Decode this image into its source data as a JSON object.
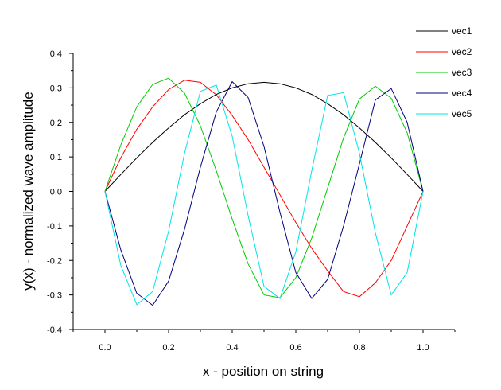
{
  "chart_data": {
    "type": "line",
    "title": "",
    "xlabel": "x - position on string",
    "ylabel": "y(x) - normalized wave amplitude",
    "xlim": [
      -0.1,
      1.1
    ],
    "ylim": [
      -0.4,
      0.4
    ],
    "x_ticks": [
      0.0,
      0.2,
      0.4,
      0.6,
      0.8,
      1.0
    ],
    "x_tick_labels": [
      "0.0",
      "0.2",
      "0.4",
      "0.6",
      "0.8",
      "1.0"
    ],
    "y_ticks": [
      -0.4,
      -0.3,
      -0.2,
      -0.1,
      0.0,
      0.1,
      0.2,
      0.3,
      0.4
    ],
    "y_tick_labels": [
      "-0.4",
      "-0.3",
      "-0.2",
      "-0.1",
      "0.0",
      "0.1",
      "0.2",
      "0.3",
      "0.4"
    ],
    "grid": false,
    "legend_position": "top-right",
    "series": [
      {
        "name": "vec1",
        "color": "#000000",
        "x": [
          0.0,
          0.05,
          0.1,
          0.15,
          0.2,
          0.25,
          0.3,
          0.35,
          0.4,
          0.45,
          0.5,
          0.55,
          0.6,
          0.65,
          0.7,
          0.75,
          0.8,
          0.85,
          0.9,
          0.95,
          1.0
        ],
        "y": [
          0.0,
          0.049,
          0.097,
          0.142,
          0.184,
          0.222,
          0.254,
          0.281,
          0.3,
          0.312,
          0.316,
          0.312,
          0.3,
          0.281,
          0.254,
          0.222,
          0.184,
          0.142,
          0.097,
          0.049,
          0.0
        ]
      },
      {
        "name": "vec2",
        "color": "#ff0000",
        "x": [
          0.0,
          0.05,
          0.1,
          0.15,
          0.2,
          0.25,
          0.3,
          0.35,
          0.4,
          0.45,
          0.5,
          0.55,
          0.6,
          0.65,
          0.7,
          0.75,
          0.8,
          0.85,
          0.9,
          0.95,
          1.0
        ],
        "y": [
          0.0,
          0.098,
          0.18,
          0.245,
          0.295,
          0.322,
          0.316,
          0.28,
          0.22,
          0.15,
          0.07,
          -0.01,
          -0.09,
          -0.165,
          -0.23,
          -0.29,
          -0.305,
          -0.265,
          -0.2,
          -0.1,
          0.0
        ]
      },
      {
        "name": "vec3",
        "color": "#00cc00",
        "x": [
          0.0,
          0.05,
          0.1,
          0.15,
          0.2,
          0.25,
          0.3,
          0.35,
          0.4,
          0.45,
          0.5,
          0.55,
          0.6,
          0.65,
          0.7,
          0.75,
          0.8,
          0.85,
          0.9,
          0.95,
          1.0
        ],
        "y": [
          0.0,
          0.135,
          0.245,
          0.31,
          0.328,
          0.285,
          0.19,
          0.06,
          -0.08,
          -0.21,
          -0.3,
          -0.308,
          -0.25,
          -0.135,
          0.01,
          0.155,
          0.268,
          0.305,
          0.27,
          0.17,
          0.0
        ]
      },
      {
        "name": "vec4",
        "color": "#000080",
        "x": [
          0.0,
          0.05,
          0.1,
          0.15,
          0.2,
          0.25,
          0.3,
          0.35,
          0.4,
          0.45,
          0.5,
          0.55,
          0.6,
          0.65,
          0.7,
          0.75,
          0.8,
          0.85,
          0.9,
          0.95,
          1.0
        ],
        "y": [
          0.0,
          -0.17,
          -0.295,
          -0.33,
          -0.26,
          -0.11,
          0.07,
          0.23,
          0.318,
          0.272,
          0.13,
          -0.06,
          -0.235,
          -0.31,
          -0.255,
          -0.1,
          0.08,
          0.265,
          0.298,
          0.2,
          0.0
        ]
      },
      {
        "name": "vec5",
        "color": "#00e5e5",
        "x": [
          0.0,
          0.05,
          0.1,
          0.15,
          0.2,
          0.25,
          0.3,
          0.35,
          0.4,
          0.45,
          0.5,
          0.55,
          0.6,
          0.65,
          0.7,
          0.75,
          0.8,
          0.85,
          0.9,
          0.95,
          1.0
        ],
        "y": [
          0.0,
          -0.215,
          -0.328,
          -0.29,
          -0.115,
          0.11,
          0.29,
          0.308,
          0.16,
          -0.07,
          -0.275,
          -0.31,
          -0.175,
          0.06,
          0.278,
          0.286,
          0.11,
          -0.12,
          -0.3,
          -0.235,
          0.0
        ]
      }
    ]
  }
}
